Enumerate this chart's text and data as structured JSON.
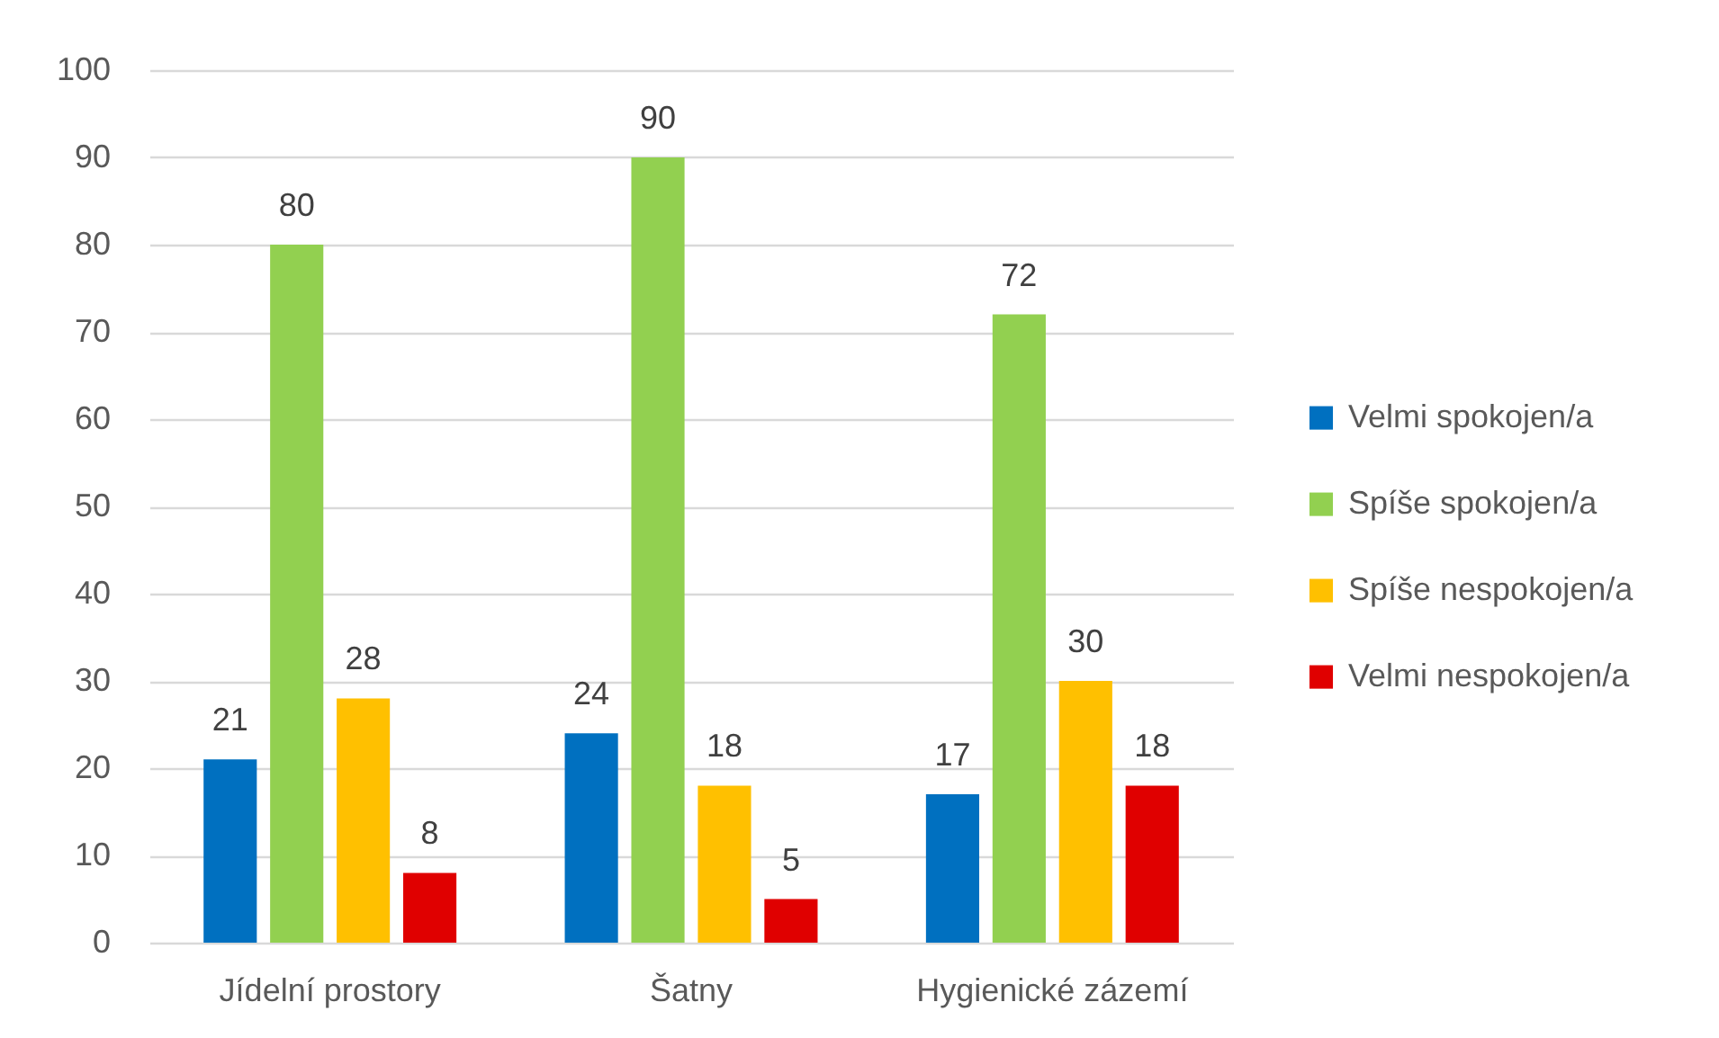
{
  "chart_data": {
    "type": "bar",
    "categories": [
      "Jídelní prostory",
      "Šatny",
      "Hygienické zázemí"
    ],
    "series": [
      {
        "name": "Velmi spokojen/a",
        "color": "#0070c0",
        "values": [
          21,
          24,
          17
        ]
      },
      {
        "name": "Spíše spokojen/a",
        "color": "#92d050",
        "values": [
          80,
          90,
          72
        ]
      },
      {
        "name": "Spíše nespokojen/a",
        "color": "#ffc000",
        "values": [
          28,
          18,
          30
        ]
      },
      {
        "name": "Velmi nespokojen/a",
        "color": "#e00000",
        "values": [
          8,
          5,
          18
        ]
      }
    ],
    "ylim": [
      0,
      100
    ],
    "yticks": [
      0,
      10,
      20,
      30,
      40,
      50,
      60,
      70,
      80,
      90,
      100
    ],
    "grid": "y",
    "data_labels": true,
    "legend": "right"
  }
}
